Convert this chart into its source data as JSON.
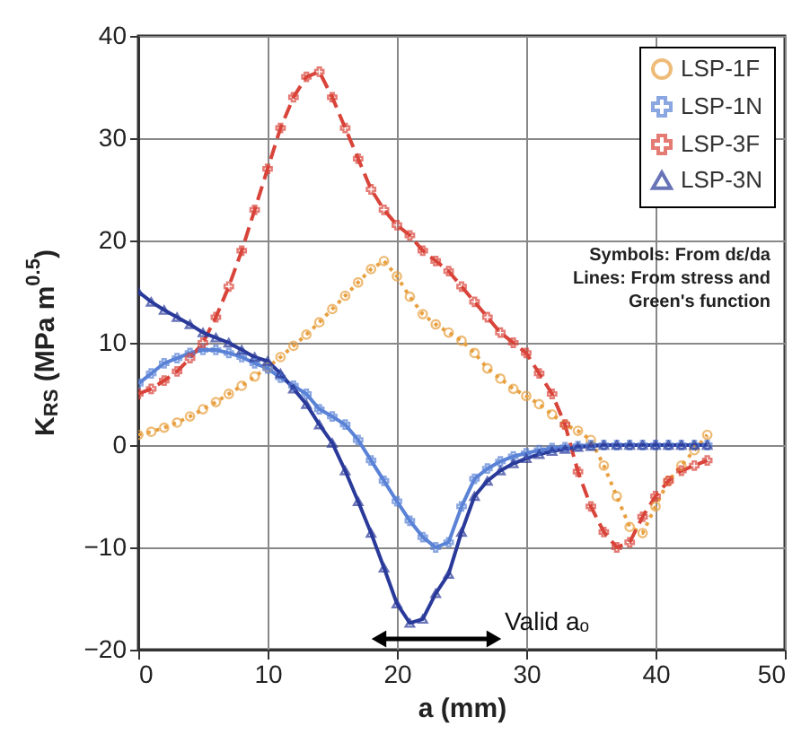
{
  "chart_data": {
    "type": "line",
    "xlabel": "a (mm)",
    "ylabel": "K$_{RS}$ (MPa m$^{0.5}$)",
    "x": [
      0,
      1,
      2,
      3,
      4,
      5,
      6,
      7,
      8,
      9,
      10,
      11,
      12,
      13,
      14,
      15,
      16,
      17,
      18,
      19,
      20,
      21,
      22,
      23,
      24,
      25,
      26,
      27,
      28,
      29,
      30,
      31,
      32,
      33,
      34,
      35,
      36,
      37,
      38,
      39,
      40,
      41,
      42,
      43,
      44
    ],
    "series": [
      {
        "name": "LSP-1F",
        "color": "#e8a040",
        "marker": "circle",
        "line_style": "dotted",
        "values": [
          1,
          1.3,
          1.7,
          2.2,
          2.8,
          3.5,
          4.2,
          5,
          5.8,
          6.7,
          7.6,
          8.6,
          9.7,
          10.8,
          12,
          13.3,
          14.6,
          15.9,
          17.2,
          18,
          16.5,
          14.5,
          12.8,
          11.8,
          11,
          10.2,
          9,
          7.5,
          6.5,
          5.5,
          4.8,
          4,
          3,
          2,
          1.4,
          0.5,
          -2,
          -5,
          -8,
          -8.6,
          -6,
          -3.5,
          -2,
          -0.5,
          1
        ]
      },
      {
        "name": "LSP-1N",
        "color": "#5a82d6",
        "marker": "cross",
        "line_style": "solid",
        "values": [
          6,
          7,
          8,
          8.5,
          9,
          9.3,
          9.3,
          9,
          8.6,
          8,
          7.5,
          6.6,
          5.8,
          5,
          3.5,
          2.8,
          2,
          0.5,
          -1.5,
          -3.5,
          -5.5,
          -7.4,
          -9,
          -10,
          -9.5,
          -6,
          -3.3,
          -2.3,
          -1.6,
          -1.1,
          -0.8,
          -0.5,
          -0.3,
          -0.2,
          -0.1,
          0,
          0,
          0,
          0,
          0,
          0,
          0,
          0,
          0,
          0
        ]
      },
      {
        "name": "LSP-3F",
        "color": "#d9443a",
        "marker": "cross",
        "line_style": "dashed",
        "values": [
          5,
          5.5,
          6.3,
          7.2,
          8.5,
          10,
          12.5,
          15.5,
          19,
          23,
          27,
          31,
          34,
          36,
          36.5,
          34,
          31,
          28,
          25,
          23,
          21.5,
          20.5,
          19,
          18,
          17,
          15.5,
          14,
          12.5,
          11,
          10,
          9,
          7,
          5,
          2,
          -2.6,
          -6,
          -8.5,
          -10,
          -9.5,
          -7,
          -5,
          -3.5,
          -2.5,
          -2,
          -1.5
        ]
      },
      {
        "name": "LSP-3N",
        "color": "#2a3a9a",
        "marker": "triangle",
        "line_style": "solid",
        "values": [
          15,
          14,
          13.2,
          12.5,
          11.8,
          11,
          10.5,
          10,
          9.3,
          8.6,
          8.2,
          7,
          5.5,
          4,
          2,
          0.2,
          -2.5,
          -5.5,
          -8.6,
          -12,
          -15.5,
          -17.4,
          -17,
          -14.5,
          -12.6,
          -8.5,
          -5,
          -3.5,
          -2.5,
          -1.8,
          -1.3,
          -0.9,
          -0.6,
          -0.4,
          -0.2,
          -0.1,
          0,
          0,
          0,
          0,
          0,
          0,
          0,
          0,
          0
        ]
      }
    ],
    "xlim": [
      0,
      50
    ],
    "xticks": [
      0,
      10,
      20,
      30,
      40,
      50
    ],
    "ylim": [
      -20,
      40
    ],
    "yticks": [
      -20,
      -10,
      0,
      10,
      20,
      30,
      40
    ],
    "grid": true,
    "legend": "top right",
    "annotations": [
      "Symbols: From dε/da",
      "Lines: From stress and Green's function",
      "Valid aₒ"
    ]
  }
}
